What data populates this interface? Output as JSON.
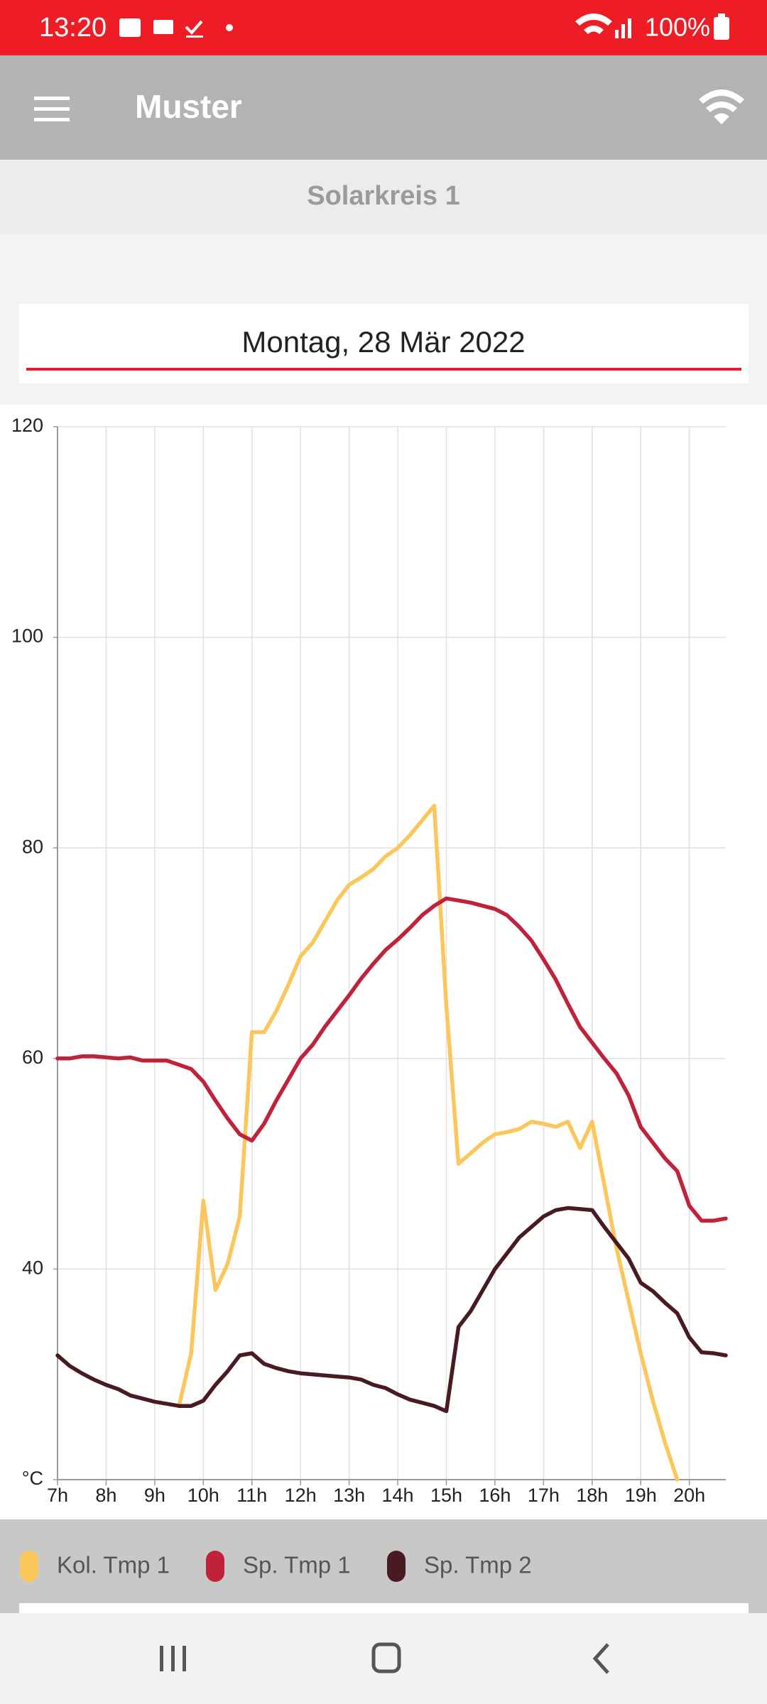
{
  "status_bar": {
    "time": "13:20",
    "battery": "100%"
  },
  "app_bar": {
    "title": "Muster"
  },
  "section": {
    "title": "Solarkreis 1"
  },
  "date": "Montag, 28 Mär 2022",
  "chart_data": {
    "type": "line",
    "x": [
      7,
      7.25,
      7.5,
      7.75,
      8,
      8.25,
      8.5,
      8.75,
      9,
      9.25,
      9.5,
      9.75,
      10,
      10.25,
      10.5,
      10.75,
      11,
      11.25,
      11.5,
      11.75,
      12,
      12.25,
      12.5,
      12.75,
      13,
      13.25,
      13.5,
      13.75,
      14,
      14.25,
      14.5,
      14.75,
      15,
      15.25,
      15.5,
      15.75,
      16,
      16.25,
      16.5,
      16.75,
      17,
      17.25,
      17.5,
      17.75,
      18,
      18.25,
      18.5,
      18.75,
      19,
      19.25,
      19.5,
      19.75,
      20,
      20.25,
      20.5,
      20.75
    ],
    "xlim": [
      7,
      20.75
    ],
    "xticks": [
      {
        "value": 7,
        "label": "7h"
      },
      {
        "value": 8,
        "label": "8h"
      },
      {
        "value": 9,
        "label": "9h"
      },
      {
        "value": 10,
        "label": "10h"
      },
      {
        "value": 11,
        "label": "11h"
      },
      {
        "value": 12,
        "label": "12h"
      },
      {
        "value": 13,
        "label": "13h"
      },
      {
        "value": 14,
        "label": "14h"
      },
      {
        "value": 15,
        "label": "15h"
      },
      {
        "value": 16,
        "label": "16h"
      },
      {
        "value": 17,
        "label": "17h"
      },
      {
        "value": 18,
        "label": "18h"
      },
      {
        "value": 19,
        "label": "19h"
      },
      {
        "value": 20,
        "label": "20h"
      }
    ],
    "ylim": [
      20,
      120
    ],
    "yticks": [
      {
        "value": 20,
        "label": "°C"
      },
      40,
      60,
      80,
      100,
      120
    ],
    "grid": true,
    "series": [
      {
        "name": "Kol. Tmp 1",
        "color": "#fcc75a",
        "values": [
          null,
          null,
          null,
          null,
          null,
          null,
          null,
          null,
          null,
          null,
          27,
          32,
          46.5,
          38,
          40.5,
          45,
          62.5,
          62.5,
          64.5,
          67,
          69.7,
          71,
          73,
          75,
          76.5,
          77.2,
          78,
          79.2,
          80,
          81.2,
          82.6,
          84,
          65,
          50,
          51,
          52,
          52.8,
          53,
          53.3,
          54,
          53.8,
          53.5,
          54,
          51.5,
          54,
          48,
          42,
          37,
          32,
          27.5,
          23.5,
          20,
          null,
          null,
          null,
          null
        ]
      },
      {
        "name": "Sp. Tmp 1",
        "color": "#c0223a",
        "values": [
          60,
          60,
          60.2,
          60.2,
          60.1,
          60,
          60.1,
          59.8,
          59.8,
          59.8,
          59.4,
          59,
          57.8,
          56,
          54.3,
          52.8,
          52.2,
          53.8,
          56,
          58,
          60,
          61.3,
          63,
          64.5,
          66,
          67.6,
          69,
          70.3,
          71.3,
          72.4,
          73.6,
          74.5,
          75.2,
          75,
          74.8,
          74.5,
          74.2,
          73.6,
          72.5,
          71.2,
          69.4,
          67.5,
          65.2,
          63,
          61.5,
          60,
          58.6,
          56.5,
          53.5,
          52,
          50.5,
          49.3,
          46,
          44.6,
          44.6,
          44.8
        ]
      },
      {
        "name": "Sp. Tmp 2",
        "color": "#4a1a22",
        "values": [
          31.8,
          30.8,
          30.1,
          29.5,
          29,
          28.6,
          28,
          27.7,
          27.4,
          27.2,
          27,
          27,
          27.5,
          29,
          30.3,
          31.8,
          32,
          31,
          30.6,
          30.3,
          30.1,
          30,
          29.9,
          29.8,
          29.7,
          29.5,
          29,
          28.7,
          28.1,
          27.6,
          27.3,
          27,
          26.5,
          34.5,
          36,
          38,
          40,
          41.5,
          43,
          44,
          45,
          45.6,
          45.8,
          45.7,
          45.6,
          44,
          42.5,
          41,
          38.7,
          37.9,
          36.8,
          35.8,
          33.5,
          32.1,
          32,
          31.8
        ]
      }
    ]
  }
}
